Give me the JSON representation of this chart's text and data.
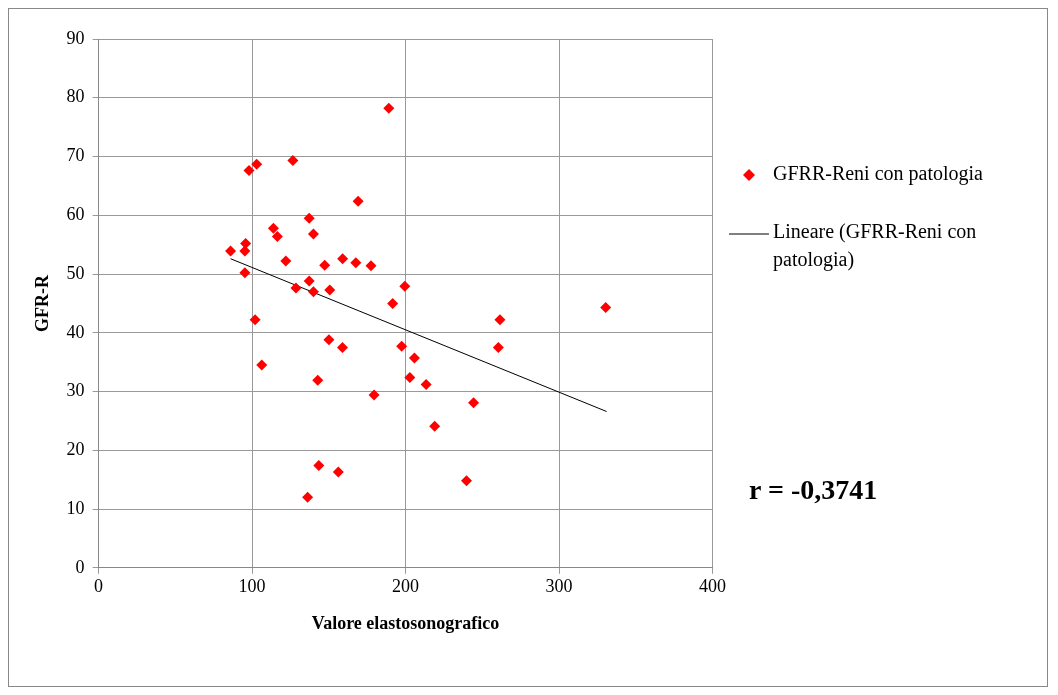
{
  "chart_data": {
    "type": "scatter",
    "xlabel": "Valore elastosonografico",
    "ylabel": "GFR-R",
    "xlim": [
      0,
      400
    ],
    "xticks": [
      0,
      100,
      200,
      300,
      400
    ],
    "ylim": [
      0,
      90
    ],
    "yticks": [
      0,
      10,
      20,
      30,
      40,
      50,
      60,
      70,
      80,
      90
    ],
    "grid": true,
    "legend": "right",
    "marker": "diamond",
    "annotations": [
      "r = -0,3741"
    ],
    "series": [
      {
        "name": "GFRR-Reni con patologia",
        "color": "#ff0000",
        "x": [
          86,
          95.8,
          95.3,
          95.3,
          98,
          103,
          126.6,
          189.1,
          169.1,
          137.2,
          140,
          113.9,
          116.5,
          122,
          147.3,
          159,
          167.6,
          177.5,
          137.2,
          128.6,
          140,
          150.6,
          199.5,
          191.6,
          102,
          261.5,
          330.4,
          150.1,
          158.9,
          197.5,
          205.8,
          260.5,
          106.3,
          142.8,
          202.8,
          213.4,
          179.5,
          244.3,
          219,
          143.5,
          156.2,
          239.7,
          136.2
        ],
        "values": [
          53.9,
          55.2,
          53.9,
          50.2,
          67.6,
          68.7,
          69.3,
          78.2,
          62.4,
          59.5,
          56.8,
          57.8,
          56.4,
          52.2,
          51.5,
          52.6,
          51.9,
          51.4,
          48.8,
          47.6,
          47,
          47.3,
          47.9,
          45,
          42.2,
          42.2,
          44.3,
          38.8,
          37.5,
          37.7,
          35.7,
          37.5,
          34.5,
          31.9,
          32.4,
          31.2,
          29.4,
          28.1,
          24.1,
          17.4,
          16.3,
          14.8,
          12
        ]
      },
      {
        "name": "Lineare (GFRR-Reni con patologia)",
        "type": "line",
        "color": "#000000",
        "marker": "none",
        "line_style": "solid",
        "x": [
          86,
          331
        ],
        "values": [
          52.6,
          26.6
        ]
      }
    ]
  }
}
